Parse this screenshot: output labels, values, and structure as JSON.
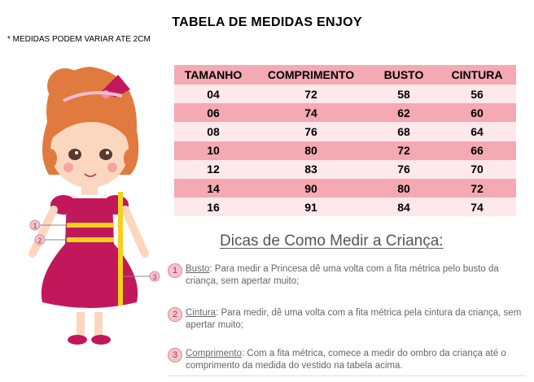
{
  "title": "TABELA DE MEDIDAS ENJOY",
  "note": "* MEDIDAS PODEM VARIAR ATE 2CM",
  "table": {
    "headers": [
      "TAMANHO",
      "COMPRIMENTO",
      "BUSTO",
      "CINTURA"
    ],
    "rows": [
      [
        "04",
        "72",
        "58",
        "56"
      ],
      [
        "06",
        "74",
        "62",
        "60"
      ],
      [
        "08",
        "76",
        "68",
        "64"
      ],
      [
        "10",
        "80",
        "72",
        "66"
      ],
      [
        "12",
        "83",
        "76",
        "70"
      ],
      [
        "14",
        "90",
        "80",
        "72"
      ],
      [
        "16",
        "91",
        "84",
        "74"
      ]
    ]
  },
  "tips": {
    "heading": "Dicas de Como Medir a Criança:",
    "items": [
      {
        "num": "1",
        "term": "Busto",
        "text": ": Para medir a Princesa dê uma volta com a fita métrica pelo busto da criança, sem apertar muito;"
      },
      {
        "num": "2",
        "term": "Cintura",
        "text": ": Para medir, dê uma volta com a fita métrica pela cintura da criança, sem apertar muito;"
      },
      {
        "num": "3",
        "term": "Comprimento",
        "text": ": Com a fita métrica, comece a medir do ombro da criança até o comprimento da medida do vestido na tabela acima."
      }
    ]
  },
  "illustration": {
    "markers": [
      "1",
      "2",
      "3"
    ]
  },
  "colors": {
    "row_dark": "#f4a9b3",
    "row_light": "#fde9eb",
    "dress": "#c2185b",
    "tape": "#f2d21b",
    "hair": "#e07a3e"
  }
}
